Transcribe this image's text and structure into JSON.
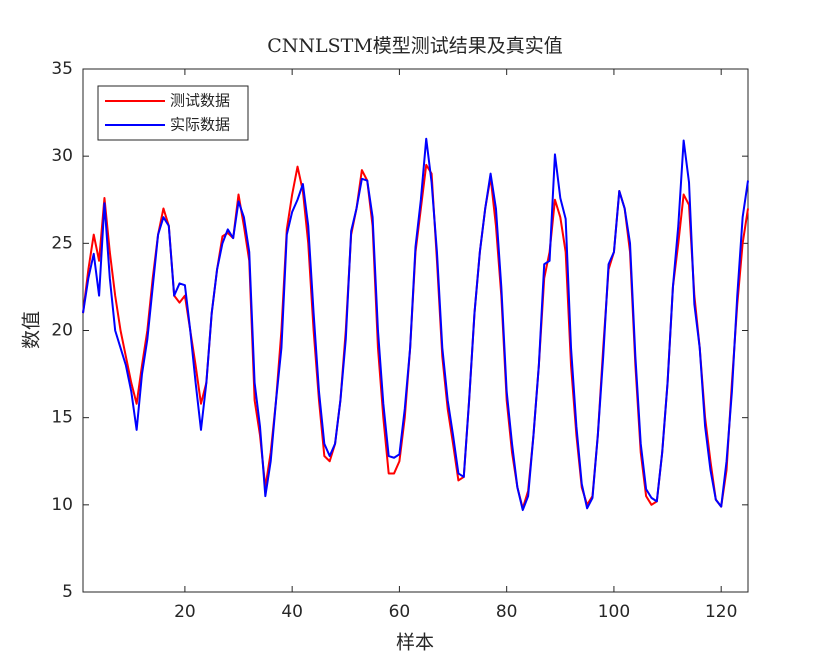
{
  "chart_data": {
    "type": "line",
    "title": "CNNLSTM模型测试结果及真实值",
    "xlabel": "样本",
    "ylabel": "数值",
    "x": [
      1,
      2,
      3,
      4,
      5,
      6,
      7,
      8,
      9,
      10,
      11,
      12,
      13,
      14,
      15,
      16,
      17,
      18,
      19,
      20,
      21,
      22,
      23,
      24,
      25,
      26,
      27,
      28,
      29,
      30,
      31,
      32,
      33,
      34,
      35,
      36,
      37,
      38,
      39,
      40,
      41,
      42,
      43,
      44,
      45,
      46,
      47,
      48,
      49,
      50,
      51,
      52,
      53,
      54,
      55,
      56,
      57,
      58,
      59,
      60,
      61,
      62,
      63,
      64,
      65,
      66,
      67,
      68,
      69,
      70,
      71,
      72,
      73,
      74,
      75,
      76,
      77,
      78,
      79,
      80,
      81,
      82,
      83,
      84,
      85,
      86,
      87,
      88,
      89,
      90,
      91,
      92,
      93,
      94,
      95,
      96,
      97,
      98,
      99,
      100,
      101,
      102,
      103,
      104,
      105,
      106,
      107,
      108,
      109,
      110,
      111,
      112,
      113,
      114,
      115,
      116,
      117,
      118,
      119,
      120,
      121,
      122,
      123,
      124,
      125
    ],
    "series": [
      {
        "name": "测试数据",
        "color": "#ff0000",
        "values": [
          21,
          23.5,
          25.5,
          24,
          27.6,
          24.5,
          22,
          20,
          18.5,
          17,
          15.8,
          18,
          20,
          23,
          25.5,
          27,
          26,
          22,
          21.6,
          22,
          20,
          18,
          15.8,
          17,
          21,
          23.5,
          25.4,
          25.6,
          25.3,
          27.8,
          26,
          24,
          16,
          14,
          11,
          13,
          16,
          20,
          25.8,
          27.8,
          29.4,
          28,
          25,
          20,
          16,
          12.8,
          12.5,
          13.5,
          16,
          20,
          25.5,
          27,
          29.2,
          28.6,
          26,
          19,
          15,
          11.8,
          11.8,
          12.5,
          15,
          19,
          24.5,
          27,
          29.5,
          29,
          24,
          18.5,
          15.5,
          13.5,
          11.4,
          11.6,
          16,
          21,
          24.5,
          27,
          28.8,
          26,
          22,
          16,
          13,
          11,
          9.8,
          10.8,
          14,
          18,
          23,
          24.5,
          27.5,
          26.5,
          24.5,
          18,
          14,
          11,
          10,
          10.5,
          14,
          19,
          23.5,
          24.5,
          28,
          27,
          24.5,
          18,
          13,
          10.5,
          10,
          10.2,
          13,
          17,
          22.5,
          25,
          27.8,
          27.2,
          22,
          19,
          15,
          12.5,
          10.3,
          9.9,
          12,
          17,
          21.5,
          25,
          27
        ]
      },
      {
        "name": "实际数据",
        "color": "#0000ff",
        "values": [
          21,
          23,
          24.4,
          22,
          27.3,
          23,
          20,
          19,
          18,
          16.5,
          14.3,
          17.5,
          19.5,
          22.5,
          25.5,
          26.5,
          26,
          22,
          22.7,
          22.6,
          20,
          17,
          14.3,
          17,
          21,
          23.5,
          25,
          25.8,
          25.3,
          27.4,
          26.5,
          24.5,
          17,
          14.5,
          10.5,
          12.5,
          16,
          19,
          25.5,
          26.8,
          27.5,
          28.4,
          26,
          21,
          16.5,
          13.5,
          12.8,
          13.5,
          16,
          19.5,
          25.7,
          27,
          28.7,
          28.6,
          26.5,
          20,
          15.8,
          12.8,
          12.7,
          12.9,
          15.5,
          19,
          24.8,
          27.5,
          31,
          28.5,
          24.5,
          19,
          16,
          14,
          11.8,
          11.6,
          16,
          21,
          24.5,
          27,
          29,
          27,
          22.5,
          16.5,
          13.5,
          11,
          9.7,
          10.5,
          14,
          18,
          23.8,
          24,
          30.1,
          27.6,
          26.4,
          19,
          14.5,
          11.2,
          9.8,
          10.4,
          14,
          18.5,
          23.8,
          24.5,
          28,
          27,
          25,
          18.5,
          13.5,
          10.9,
          10.4,
          10.2,
          13,
          17,
          22.5,
          26,
          30.9,
          28.5,
          21.5,
          19,
          14.5,
          12,
          10.3,
          9.9,
          12.5,
          16.5,
          22,
          26.5,
          28.6
        ]
      }
    ],
    "xlim": [
      1,
      125
    ],
    "ylim": [
      5,
      35
    ],
    "xticks": [
      20,
      40,
      60,
      80,
      100,
      120
    ],
    "yticks": [
      5,
      10,
      15,
      20,
      25,
      30,
      35
    ],
    "legend": "upper left"
  }
}
